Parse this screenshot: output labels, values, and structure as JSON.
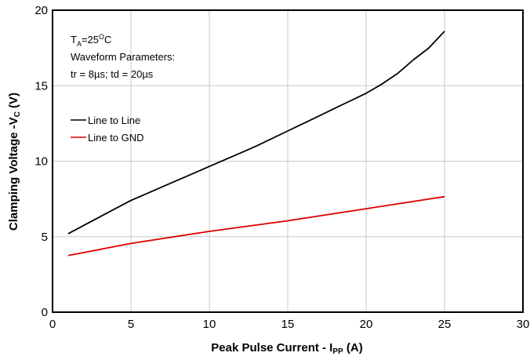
{
  "chart_data": {
    "type": "line",
    "xlabel_main": "Peak Pulse Current - I",
    "xlabel_sub": "PP",
    "xlabel_unit": " (A)",
    "ylabel_main": "Clamping Voltage -V",
    "ylabel_sub": "C",
    "ylabel_unit": " (V)",
    "xlim": [
      0,
      30
    ],
    "ylim": [
      0,
      20
    ],
    "xticks": [
      0,
      5,
      10,
      15,
      20,
      25,
      30
    ],
    "yticks": [
      0,
      5,
      10,
      15,
      20
    ],
    "grid": true,
    "legend_position": "upper-left",
    "annotation": {
      "temp_main": "T",
      "temp_sub": "A",
      "temp_eq": "=25",
      "temp_sup": "O",
      "temp_unit": "C",
      "line2": "Waveform Parameters:",
      "line3": "tr = 8µs; td = 20µs"
    },
    "series": [
      {
        "name": "Line to Line",
        "color": "#000000",
        "x": [
          1,
          2,
          3,
          4,
          5,
          6,
          7,
          8,
          9,
          10,
          11,
          12,
          13,
          14,
          15,
          16,
          17,
          18,
          19,
          20,
          21,
          22,
          23,
          24,
          25
        ],
        "y": [
          5.2,
          5.75,
          6.3,
          6.85,
          7.4,
          7.85,
          8.3,
          8.75,
          9.2,
          9.65,
          10.1,
          10.55,
          11.0,
          11.5,
          12.0,
          12.5,
          13.0,
          13.5,
          14.0,
          14.5,
          15.1,
          15.8,
          16.7,
          17.5,
          18.6
        ]
      },
      {
        "name": "Line to GND",
        "color": "#e00000",
        "x": [
          1,
          5,
          10,
          15,
          20,
          25
        ],
        "y": [
          3.75,
          4.55,
          5.35,
          6.05,
          6.85,
          7.65
        ]
      }
    ]
  }
}
